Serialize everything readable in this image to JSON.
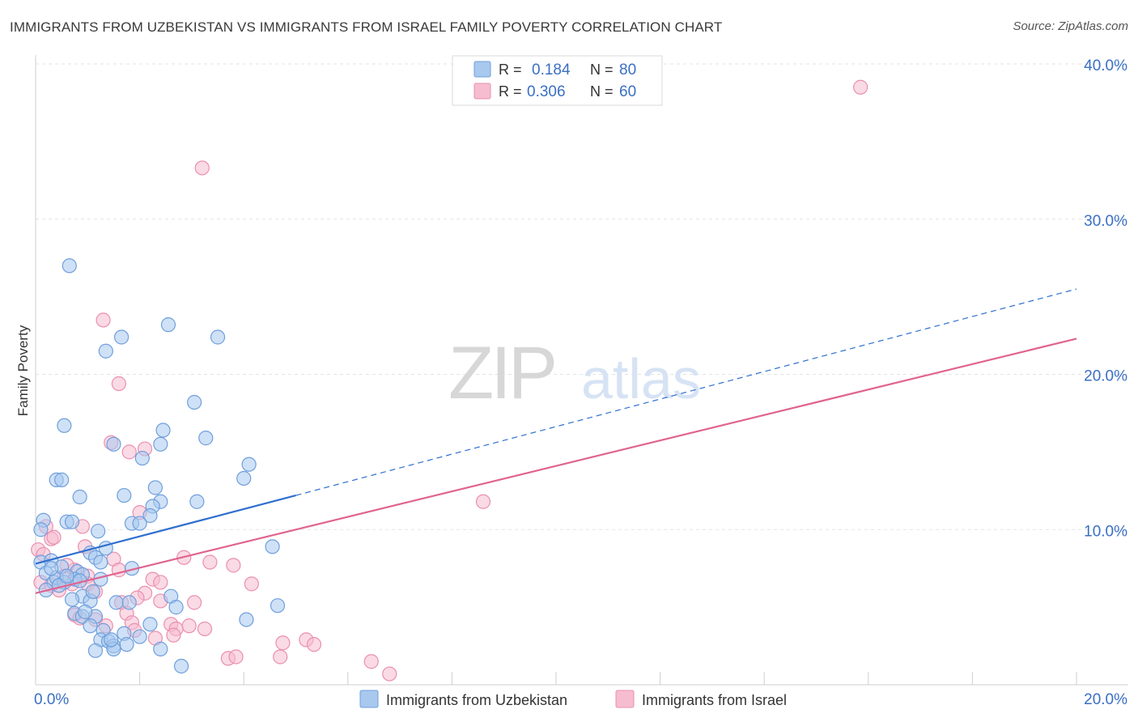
{
  "chart_data": {
    "type": "scatter",
    "title": "IMMIGRANTS FROM UZBEKISTAN VS IMMIGRANTS FROM ISRAEL FAMILY POVERTY CORRELATION CHART",
    "source": "Source: ZipAtlas.com",
    "ylabel": "Family Poverty",
    "xlabel": "",
    "xlim": [
      0,
      20
    ],
    "ylim": [
      0,
      40
    ],
    "x_tick_labels": [
      {
        "value": 0,
        "label": "0.0%"
      },
      {
        "value": 20,
        "label": "20.0%"
      }
    ],
    "y_tick_labels": [
      {
        "value": 10,
        "label": "10.0%"
      },
      {
        "value": 20,
        "label": "20.0%"
      },
      {
        "value": 30,
        "label": "30.0%"
      },
      {
        "value": 40,
        "label": "40.0%"
      }
    ],
    "grid": true,
    "legend_position": "top-center",
    "watermark": "ZIPatlas",
    "colors": {
      "uzbekistan_fill": "#a8c8ee",
      "uzbekistan_stroke": "#6f9fdc",
      "uzbekistan_line": "#2f6fcf",
      "israel_fill": "#f6bcd0",
      "israel_stroke": "#ea8fb0",
      "israel_line": "#e0648f",
      "value_text": "#3a6fc4"
    },
    "series": [
      {
        "name": "Immigrants from Uzbekistan",
        "r_label": "R =",
        "r_value": "0.184",
        "n_label": "N =",
        "n_value": "80",
        "trend": {
          "x0": 0,
          "y0": 7.8,
          "x1": 5.0,
          "y1": 12.2,
          "dash_to_x": 20,
          "dash_to_y": 25.5
        },
        "points": [
          [
            0.15,
            10.6
          ],
          [
            0.1,
            10.0
          ],
          [
            0.1,
            7.9
          ],
          [
            0.2,
            7.2
          ],
          [
            0.3,
            8.0
          ],
          [
            0.35,
            6.6
          ],
          [
            0.4,
            6.9
          ],
          [
            0.5,
            7.6
          ],
          [
            0.2,
            6.1
          ],
          [
            0.65,
            27.0
          ],
          [
            0.55,
            16.7
          ],
          [
            0.4,
            13.2
          ],
          [
            0.5,
            13.2
          ],
          [
            0.6,
            10.5
          ],
          [
            0.7,
            10.5
          ],
          [
            0.85,
            12.1
          ],
          [
            1.65,
            22.4
          ],
          [
            1.35,
            21.5
          ],
          [
            1.5,
            15.5
          ],
          [
            2.55,
            23.2
          ],
          [
            2.45,
            16.4
          ],
          [
            2.4,
            15.5
          ],
          [
            2.05,
            14.6
          ],
          [
            3.05,
            18.2
          ],
          [
            3.5,
            22.4
          ],
          [
            3.27,
            15.9
          ],
          [
            4.1,
            14.2
          ],
          [
            4.0,
            13.3
          ],
          [
            1.7,
            12.2
          ],
          [
            2.3,
            12.7
          ],
          [
            2.4,
            11.8
          ],
          [
            2.25,
            11.5
          ],
          [
            2.2,
            10.9
          ],
          [
            3.1,
            11.8
          ],
          [
            1.85,
            10.4
          ],
          [
            2.0,
            10.4
          ],
          [
            1.2,
            9.9
          ],
          [
            1.35,
            8.8
          ],
          [
            1.05,
            8.5
          ],
          [
            1.15,
            8.2
          ],
          [
            1.25,
            7.9
          ],
          [
            1.85,
            7.5
          ],
          [
            0.8,
            7.3
          ],
          [
            0.9,
            7.1
          ],
          [
            0.75,
            6.8
          ],
          [
            0.85,
            6.7
          ],
          [
            1.25,
            6.8
          ],
          [
            0.55,
            6.6
          ],
          [
            0.45,
            6.4
          ],
          [
            0.9,
            5.7
          ],
          [
            0.7,
            5.5
          ],
          [
            1.05,
            5.4
          ],
          [
            1.55,
            5.3
          ],
          [
            1.8,
            5.3
          ],
          [
            2.6,
            5.7
          ],
          [
            2.7,
            5.0
          ],
          [
            4.65,
            5.1
          ],
          [
            4.55,
            8.9
          ],
          [
            0.75,
            4.6
          ],
          [
            0.9,
            4.4
          ],
          [
            1.15,
            4.4
          ],
          [
            1.05,
            3.8
          ],
          [
            1.3,
            3.5
          ],
          [
            1.7,
            3.3
          ],
          [
            2.2,
            3.9
          ],
          [
            1.25,
            2.9
          ],
          [
            1.4,
            2.8
          ],
          [
            1.5,
            2.5
          ],
          [
            1.75,
            2.6
          ],
          [
            1.15,
            2.2
          ],
          [
            1.5,
            2.3
          ],
          [
            2.4,
            2.3
          ],
          [
            2.8,
            1.2
          ],
          [
            4.05,
            4.2
          ],
          [
            1.45,
            2.9
          ],
          [
            0.95,
            4.7
          ],
          [
            0.6,
            7.0
          ],
          [
            0.3,
            7.5
          ],
          [
            1.1,
            6.0
          ],
          [
            2.0,
            3.1
          ]
        ]
      },
      {
        "name": "Immigrants from Israel",
        "r_label": "R =",
        "r_value": "0.306",
        "n_label": "N =",
        "n_value": "60",
        "trend": {
          "x0": 0,
          "y0": 5.9,
          "x1": 20,
          "y1": 22.3
        },
        "points": [
          [
            15.85,
            38.5
          ],
          [
            3.2,
            33.3
          ],
          [
            1.3,
            23.5
          ],
          [
            1.6,
            19.4
          ],
          [
            1.45,
            15.6
          ],
          [
            2.1,
            15.2
          ],
          [
            1.8,
            15.0
          ],
          [
            8.6,
            11.8
          ],
          [
            2.0,
            11.1
          ],
          [
            0.2,
            10.2
          ],
          [
            0.3,
            9.4
          ],
          [
            0.35,
            9.5
          ],
          [
            0.9,
            10.2
          ],
          [
            0.05,
            8.7
          ],
          [
            0.15,
            8.4
          ],
          [
            0.95,
            8.9
          ],
          [
            1.5,
            8.1
          ],
          [
            2.85,
            8.2
          ],
          [
            3.35,
            7.9
          ],
          [
            3.8,
            7.7
          ],
          [
            1.6,
            7.4
          ],
          [
            0.75,
            7.4
          ],
          [
            0.55,
            7.0
          ],
          [
            1.0,
            7.0
          ],
          [
            0.1,
            6.6
          ],
          [
            0.3,
            6.4
          ],
          [
            0.45,
            6.1
          ],
          [
            0.7,
            6.5
          ],
          [
            1.0,
            6.5
          ],
          [
            1.15,
            6.0
          ],
          [
            2.25,
            6.8
          ],
          [
            2.4,
            6.6
          ],
          [
            2.1,
            5.9
          ],
          [
            1.95,
            5.6
          ],
          [
            3.05,
            5.3
          ],
          [
            2.4,
            5.4
          ],
          [
            4.15,
            6.5
          ],
          [
            1.65,
            5.3
          ],
          [
            1.75,
            4.6
          ],
          [
            0.75,
            4.5
          ],
          [
            1.15,
            4.2
          ],
          [
            1.85,
            4.0
          ],
          [
            1.35,
            3.8
          ],
          [
            2.6,
            3.9
          ],
          [
            2.7,
            3.6
          ],
          [
            2.95,
            3.8
          ],
          [
            3.25,
            3.6
          ],
          [
            2.65,
            3.2
          ],
          [
            2.3,
            3.0
          ],
          [
            4.75,
            2.7
          ],
          [
            5.2,
            2.9
          ],
          [
            5.35,
            2.6
          ],
          [
            3.7,
            1.7
          ],
          [
            3.85,
            1.8
          ],
          [
            4.7,
            1.8
          ],
          [
            6.45,
            1.5
          ],
          [
            6.8,
            0.7
          ],
          [
            0.85,
            4.3
          ],
          [
            1.9,
            3.5
          ],
          [
            0.6,
            7.7
          ]
        ]
      }
    ]
  }
}
